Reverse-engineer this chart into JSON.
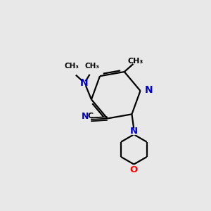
{
  "background_color": "#e8e8e8",
  "bond_color": "#000000",
  "N_color": "#0000cc",
  "O_color": "#ff0000",
  "line_width": 1.6,
  "figsize": [
    3.0,
    3.0
  ],
  "dpi": 100,
  "xlim": [
    0,
    10
  ],
  "ylim": [
    0,
    10
  ]
}
